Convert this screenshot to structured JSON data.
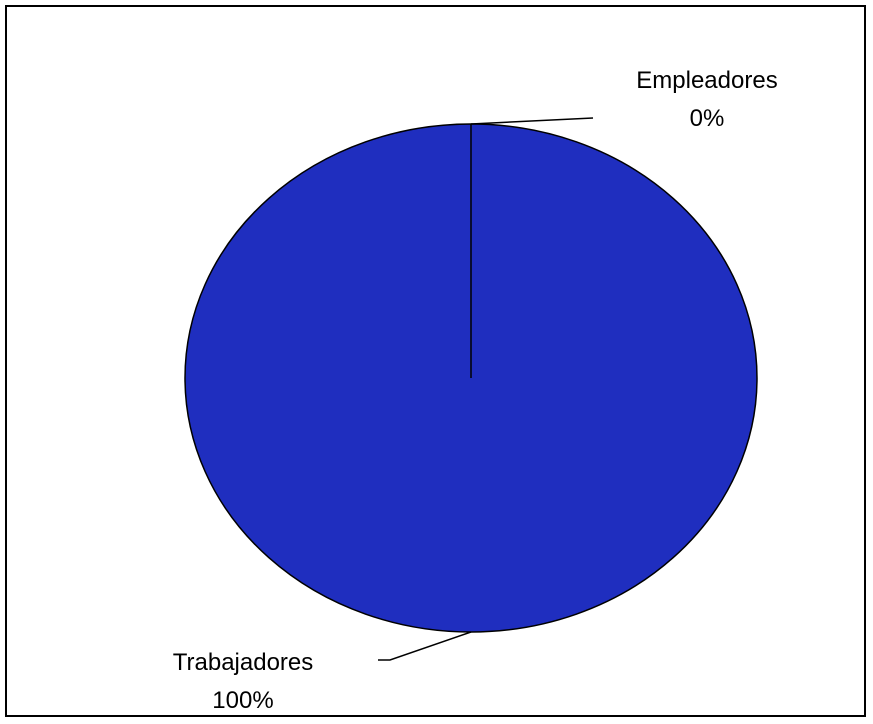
{
  "chart_data": {
    "type": "pie",
    "slices": [
      {
        "label": "Empleadores",
        "value": 0,
        "percent_label": "0%",
        "color": "#1f2ebf"
      },
      {
        "label": "Trabajadores",
        "value": 100,
        "percent_label": "100%",
        "color": "#1f2ebf"
      }
    ],
    "title": "",
    "legend": "none",
    "label_position": "outside-with-leader-lines"
  }
}
